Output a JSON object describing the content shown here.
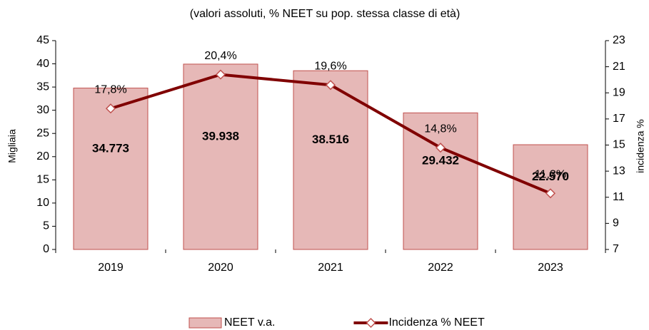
{
  "chart_data": {
    "type": "bar",
    "title": "(valori assoluti, % NEET su pop. stessa classe di età)",
    "categories": [
      "2019",
      "2020",
      "2021",
      "2022",
      "2023"
    ],
    "ylabel": "Migliaia",
    "y2label": "incidenza %",
    "ylim": [
      0,
      45
    ],
    "yticks": [
      0,
      5,
      10,
      15,
      20,
      25,
      30,
      35,
      40,
      45
    ],
    "y2lim": [
      7,
      23
    ],
    "y2ticks": [
      7,
      9,
      11,
      13,
      15,
      17,
      19,
      21,
      23
    ],
    "series": [
      {
        "name": "NEET v.a.",
        "type": "bar",
        "color": "#e6b8b7",
        "values": [
          34.773,
          39.938,
          38.516,
          29.432,
          22.57
        ],
        "value_labels": [
          "34.773",
          "39.938",
          "38.516",
          "29.432",
          "22.570"
        ]
      },
      {
        "name": "Incidenza % NEET",
        "type": "line",
        "axis": "y2",
        "color": "#800000",
        "values": [
          17.8,
          20.4,
          19.6,
          14.8,
          11.3
        ],
        "value_labels": [
          "17,8%",
          "20,4%",
          "19,6%",
          "14,8%",
          "11,3%"
        ]
      }
    ],
    "legend": "bottom"
  }
}
